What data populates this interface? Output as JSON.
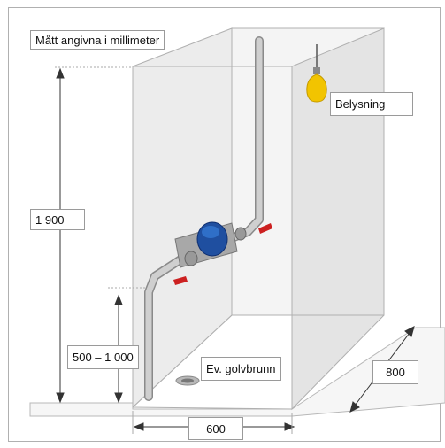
{
  "labels": {
    "units_note": "Mått angivna i millimeter",
    "height": "1 900",
    "tap_height_range": "500 – 1 000",
    "floor_drain": "Ev. golvbrunn",
    "lighting": "Belysning",
    "depth": "800",
    "width": "600"
  },
  "colors": {
    "frame": "#9a9a9a",
    "box_edge": "#b5b5b5",
    "pipe": "#c2c2c2",
    "meter_blue": "#1f4fa0",
    "valve_red": "#cc2020",
    "bulb_yellow": "#f2c400",
    "dimension_line": "#333333"
  }
}
